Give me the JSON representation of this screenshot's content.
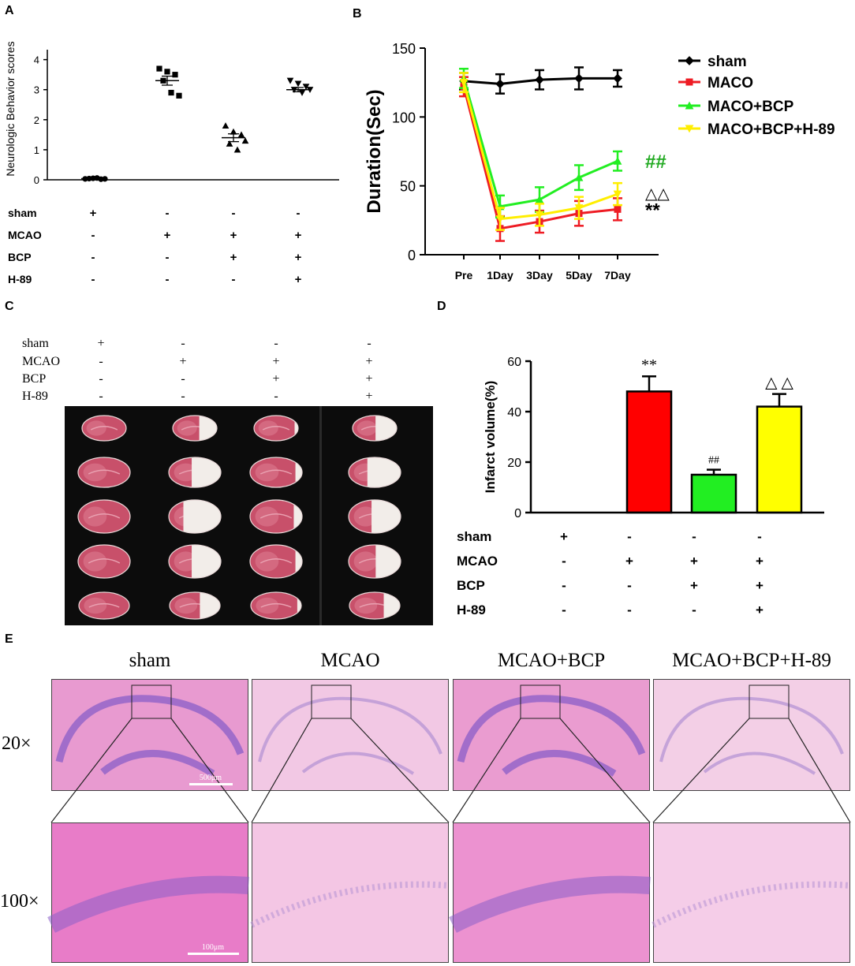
{
  "panelA": {
    "letter": "A",
    "chart_data": {
      "type": "scatter",
      "ylabel": "Neurologic Behavior scores",
      "yticks": [
        "0",
        "1",
        "2",
        "3",
        "4"
      ],
      "ylim": [
        0,
        4.2
      ],
      "groups": [
        {
          "points": [
            0.03,
            0.05,
            0.02,
            0.04,
            0.06,
            0.03
          ],
          "mean": 0.04,
          "sem": 0.02,
          "marker": "circle"
        },
        {
          "points": [
            3.7,
            3.6,
            3.5,
            3.3,
            2.9,
            2.8
          ],
          "mean": 3.3,
          "sem": 0.15,
          "marker": "square"
        },
        {
          "points": [
            1.8,
            1.6,
            1.5,
            1.2,
            1.0,
            1.3
          ],
          "mean": 1.4,
          "sem": 0.13,
          "marker": "triangle-up"
        },
        {
          "points": [
            3.3,
            3.2,
            3.1,
            3.0,
            2.9,
            3.0
          ],
          "mean": 3.0,
          "sem": 0.07,
          "marker": "triangle-down"
        }
      ]
    },
    "conditions": [
      {
        "label": "sham",
        "signs": [
          "+",
          "-",
          "-",
          "-"
        ]
      },
      {
        "label": "MCAO",
        "signs": [
          "-",
          "+",
          "+",
          "+"
        ]
      },
      {
        "label": "BCP",
        "signs": [
          "-",
          "-",
          "+",
          "+"
        ]
      },
      {
        "label": "H-89",
        "signs": [
          "-",
          "-",
          "-",
          "+"
        ]
      }
    ]
  },
  "panelB": {
    "letter": "B",
    "chart_data": {
      "type": "line",
      "ylabel": "Duration(Sec)",
      "x": [
        "Pre",
        "1Day",
        "3Day",
        "5Day",
        "7Day"
      ],
      "yticks": [
        "0",
        "50",
        "100",
        "150"
      ],
      "ylim": [
        0,
        150
      ],
      "legend_position": "right",
      "series": [
        {
          "name": "sham",
          "values": [
            126,
            124,
            127,
            128,
            128
          ],
          "err": [
            6,
            7,
            7,
            8,
            6
          ],
          "color": "#000000",
          "marker": "diamond"
        },
        {
          "name": "MACO",
          "values": [
            122,
            19,
            24,
            30,
            33
          ],
          "err": [
            7,
            9,
            8,
            9,
            8
          ],
          "color": "#ee1c24",
          "marker": "square"
        },
        {
          "name": "MACO+BCP",
          "values": [
            128,
            35,
            40,
            56,
            68
          ],
          "err": [
            7,
            8,
            9,
            9,
            7
          ],
          "color": "#22ee22",
          "marker": "triangle-up"
        },
        {
          "name": "MACO+BCP+H-89",
          "values": [
            125,
            26,
            29,
            34,
            44
          ],
          "err": [
            7,
            8,
            8,
            8,
            8
          ],
          "color": "#ffee00",
          "marker": "triangle-down"
        }
      ],
      "annotations": [
        {
          "text": "##",
          "series": 2,
          "color": "#22aa22"
        },
        {
          "text": "△△",
          "series": 3,
          "color": "#000000"
        },
        {
          "text": "**",
          "series": 1,
          "color": "#000000"
        }
      ]
    }
  },
  "panelC": {
    "letter": "C",
    "conditions": [
      {
        "label": "sham",
        "signs": [
          "+",
          "-",
          "-",
          "-"
        ]
      },
      {
        "label": "MCAO",
        "signs": [
          "-",
          "+",
          "+",
          "+"
        ]
      },
      {
        "label": "BCP",
        "signs": [
          "-",
          "-",
          "+",
          "+"
        ]
      },
      {
        "label": "H-89",
        "signs": [
          "-",
          "-",
          "-",
          "+"
        ]
      }
    ],
    "infarct_fraction": [
      [
        0,
        0,
        0,
        0,
        0
      ],
      [
        0.25,
        0.35,
        0.45,
        0.35,
        0.25
      ],
      [
        0.05,
        0.08,
        0.1,
        0.08,
        0.05
      ],
      [
        0.3,
        0.4,
        0.35,
        0.3,
        0.2
      ]
    ]
  },
  "panelD": {
    "letter": "D",
    "chart_data": {
      "type": "bar",
      "ylabel": "Infarct volume(%)",
      "yticks": [
        "0",
        "20",
        "40",
        "60"
      ],
      "ylim": [
        0,
        60
      ],
      "values": [
        0,
        48,
        15,
        42
      ],
      "err": [
        0,
        6,
        2,
        5
      ],
      "colors": [
        "#ffffff",
        "#ff0000",
        "#22ee22",
        "#ffff00"
      ],
      "annotations": [
        "",
        "**",
        "##",
        "△ △"
      ]
    },
    "conditions": [
      {
        "label": "sham",
        "signs": [
          "+",
          "-",
          "-",
          "-"
        ]
      },
      {
        "label": "MCAO",
        "signs": [
          "-",
          "+",
          "+",
          "+"
        ]
      },
      {
        "label": "BCP",
        "signs": [
          "-",
          "-",
          "+",
          "+"
        ]
      },
      {
        "label": "H-89",
        "signs": [
          "-",
          "-",
          "-",
          "+"
        ]
      }
    ]
  },
  "panelE": {
    "letter": "E",
    "columns": [
      "sham",
      "MCAO",
      "MCAO+BCP",
      "MCAO+BCP+H-89"
    ],
    "row_labels": [
      "20×",
      "100×"
    ],
    "scale_bars": [
      "500μm",
      "100μm"
    ]
  }
}
